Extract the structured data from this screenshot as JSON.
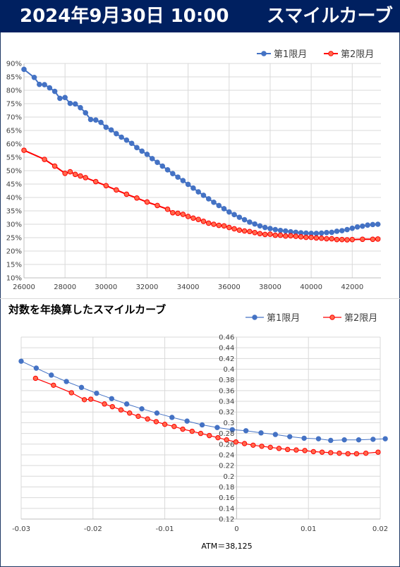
{
  "header": {
    "date": "2024年9月30日 10:00",
    "title": "スマイルカーブ"
  },
  "colors": {
    "header_bg": "#002060",
    "series1": "#4472c4",
    "series2": "#ff0000",
    "series2_fill": "#ff6a4d",
    "grid": "#d9d9d9"
  },
  "chart_data": [
    {
      "type": "line",
      "title": "",
      "xlabel": "",
      "ylabel": "",
      "xlim": [
        26000,
        43400
      ],
      "ylim": [
        10,
        90
      ],
      "xticks": [
        26000,
        28000,
        30000,
        32000,
        34000,
        36000,
        38000,
        40000,
        42000
      ],
      "xtick_labels": [
        "26000",
        "28000",
        "30000",
        "32000",
        "34000",
        "36000",
        "38000",
        "40000",
        "42000"
      ],
      "yticks": [
        10,
        15,
        20,
        25,
        30,
        35,
        40,
        45,
        50,
        55,
        60,
        65,
        70,
        75,
        80,
        85,
        90
      ],
      "ytick_labels": [
        "10%",
        "15%",
        "20%",
        "25%",
        "30%",
        "35%",
        "40%",
        "45%",
        "50%",
        "55%",
        "60%",
        "65%",
        "70%",
        "75%",
        "80%",
        "85%",
        "90%"
      ],
      "grid": true,
      "legend": "top-right",
      "series": [
        {
          "name": "第1限月",
          "x": [
            26000,
            26500,
            26750,
            27000,
            27250,
            27500,
            27750,
            28000,
            28250,
            28500,
            28750,
            29000,
            29250,
            29500,
            29750,
            30000,
            30250,
            30500,
            30750,
            31000,
            31250,
            31500,
            31750,
            32000,
            32250,
            32500,
            32750,
            33000,
            33250,
            33500,
            33750,
            34000,
            34250,
            34500,
            34750,
            35000,
            35250,
            35500,
            35750,
            36000,
            36250,
            36500,
            36750,
            37000,
            37250,
            37500,
            37750,
            38000,
            38250,
            38500,
            38750,
            39000,
            39250,
            39500,
            39750,
            40000,
            40250,
            40500,
            40750,
            41000,
            41250,
            41500,
            41750,
            42000,
            42250,
            42500,
            42750,
            43000,
            43250
          ],
          "y": [
            87.8,
            84.8,
            82.2,
            82.1,
            80.9,
            79.6,
            77.0,
            77.3,
            75.1,
            74.9,
            73.5,
            71.6,
            69.1,
            68.9,
            68.0,
            66.2,
            65.2,
            63.8,
            62.5,
            61.4,
            60.2,
            58.6,
            57.3,
            56.1,
            54.5,
            53.1,
            51.7,
            50.3,
            48.9,
            47.6,
            46.3,
            44.9,
            43.5,
            42.1,
            40.8,
            39.5,
            38.2,
            37.0,
            35.8,
            34.6,
            33.6,
            32.6,
            31.7,
            30.8,
            30.1,
            29.4,
            28.8,
            28.4,
            28.0,
            27.7,
            27.5,
            27.2,
            27.0,
            26.8,
            26.7,
            26.6,
            26.6,
            26.7,
            26.9,
            27.0,
            27.4,
            27.6,
            28.0,
            28.5,
            29.0,
            29.3,
            29.7,
            29.9,
            30.0
          ]
        },
        {
          "name": "第2限月",
          "x": [
            26000,
            27000,
            27500,
            28000,
            28250,
            28500,
            28750,
            29000,
            29500,
            30000,
            30500,
            31000,
            31500,
            32000,
            32500,
            33000,
            33250,
            33500,
            33750,
            34000,
            34250,
            34500,
            34750,
            35000,
            35250,
            35500,
            35750,
            36000,
            36250,
            36500,
            36750,
            37000,
            37250,
            37500,
            37750,
            38000,
            38250,
            38500,
            38750,
            39000,
            39250,
            39500,
            39750,
            40000,
            40250,
            40500,
            40750,
            41000,
            41250,
            41500,
            41750,
            42000,
            42500,
            43000,
            43250
          ],
          "y": [
            57.6,
            54.2,
            51.7,
            49.0,
            49.6,
            48.6,
            48.0,
            47.4,
            45.9,
            44.4,
            42.8,
            41.2,
            39.8,
            38.3,
            37.0,
            35.6,
            34.3,
            34.1,
            33.7,
            32.9,
            32.3,
            31.8,
            31.1,
            30.4,
            30.0,
            29.6,
            29.4,
            28.8,
            28.3,
            27.8,
            27.5,
            27.3,
            26.9,
            26.5,
            26.2,
            26.3,
            25.9,
            25.9,
            25.6,
            25.7,
            25.5,
            25.3,
            25.1,
            25.1,
            24.9,
            24.8,
            24.6,
            24.6,
            24.3,
            24.3,
            24.2,
            24.3,
            24.4,
            24.4,
            24.5
          ]
        }
      ]
    },
    {
      "type": "line",
      "title": "対数を年換算したスマイルカーブ",
      "xlabel": "ATM＝38,125",
      "ylabel": "",
      "xlim": [
        -0.03,
        0.02
      ],
      "ylim": [
        0.12,
        0.46
      ],
      "xticks": [
        -0.03,
        -0.02,
        -0.01,
        0,
        0.01,
        0.02
      ],
      "xtick_labels": [
        "-0.03",
        "-0.02",
        "-0.01",
        "0",
        "0.01",
        "0.02"
      ],
      "yticks": [
        0.12,
        0.14,
        0.16,
        0.18,
        0.2,
        0.22,
        0.24,
        0.26,
        0.28,
        0.3,
        0.32,
        0.34,
        0.36,
        0.38,
        0.4,
        0.42,
        0.44,
        0.46
      ],
      "ytick_labels": [
        "0.12",
        "0.14",
        "0.16",
        "0.18",
        "0.2",
        "0.22",
        "0.24",
        "0.26",
        "0.28",
        "0.3",
        "0.32",
        "0.34",
        "0.36",
        "0.38",
        "0.4",
        "0.42",
        "0.44",
        "0.46"
      ],
      "grid": true,
      "legend": "top-right",
      "series": [
        {
          "name": "第1限月",
          "x": [
            -0.03,
            -0.0279,
            -0.0258,
            -0.0237,
            -0.0216,
            -0.0195,
            -0.0174,
            -0.0153,
            -0.0132,
            -0.0111,
            -0.009,
            -0.0069,
            -0.0048,
            -0.0027,
            -0.0006,
            0.0013,
            0.0034,
            0.0054,
            0.0074,
            0.0094,
            0.0114,
            0.0131,
            0.015,
            0.017,
            0.019,
            0.0207
          ],
          "y": [
            0.415,
            0.402,
            0.389,
            0.377,
            0.366,
            0.355,
            0.345,
            0.335,
            0.326,
            0.318,
            0.31,
            0.303,
            0.296,
            0.291,
            0.287,
            0.285,
            0.281,
            0.278,
            0.274,
            0.271,
            0.27,
            0.267,
            0.268,
            0.268,
            0.269,
            0.27
          ]
        },
        {
          "name": "第2限月",
          "x": [
            -0.028,
            -0.0255,
            -0.023,
            -0.0212,
            -0.0203,
            -0.0184,
            -0.0173,
            -0.0161,
            -0.0149,
            -0.0137,
            -0.0124,
            -0.0112,
            -0.01,
            -0.0087,
            -0.0075,
            -0.0062,
            -0.005,
            -0.0038,
            -0.0026,
            -0.0014,
            -0.0001,
            0.0011,
            0.0023,
            0.0035,
            0.0047,
            0.0059,
            0.0071,
            0.0083,
            0.0095,
            0.0107,
            0.0119,
            0.0131,
            0.0143,
            0.0155,
            0.0167,
            0.018,
            0.0197
          ],
          "y": [
            0.383,
            0.37,
            0.356,
            0.343,
            0.344,
            0.335,
            0.33,
            0.324,
            0.318,
            0.312,
            0.307,
            0.302,
            0.297,
            0.293,
            0.288,
            0.284,
            0.28,
            0.276,
            0.272,
            0.268,
            0.264,
            0.261,
            0.258,
            0.256,
            0.254,
            0.252,
            0.25,
            0.249,
            0.248,
            0.246,
            0.245,
            0.244,
            0.243,
            0.242,
            0.242,
            0.243,
            0.245
          ]
        }
      ]
    }
  ]
}
